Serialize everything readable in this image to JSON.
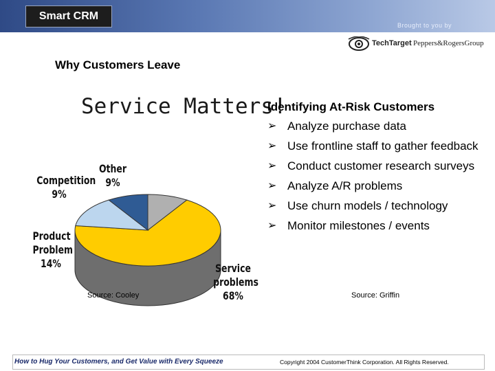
{
  "header": {
    "logo_text": "Smart CRM",
    "brought_by": "Brought to you by",
    "sponsor_1": "TechTarget",
    "sponsor_2": "Peppers&RogersGroup"
  },
  "slide": {
    "title": "Why Customers Leave",
    "heading": "Service Matters!",
    "right_title": "Identifying At-Risk Customers",
    "bullets": [
      "Analyze purchase data",
      "Use frontline staff to gather feedback",
      "Conduct customer research surveys",
      "Analyze A/R problems",
      "Use churn models / technology",
      "Monitor milestones / events"
    ],
    "source_left": "Source: Cooley",
    "source_right": "Source: Griffin"
  },
  "footer": {
    "title": "How to Hug Your Customers, and Get Value with Every Squeeze",
    "copyright": "Copyright 2004 CustomerThink Corporation. All Rights Reserved."
  },
  "chart_data": {
    "type": "pie",
    "title": "",
    "slices": [
      {
        "label_lines": [
          "Service",
          "problems"
        ],
        "value_label": "68%",
        "value": 68,
        "color": "#ffcc00"
      },
      {
        "label_lines": [
          "Product",
          "Problem"
        ],
        "value_label": "14%",
        "value": 14,
        "color": "#bcd6ee"
      },
      {
        "label_lines": [
          "Competition"
        ],
        "value_label": "9%",
        "value": 9,
        "color": "#2f5b94"
      },
      {
        "label_lines": [
          "Other"
        ],
        "value_label": "9%",
        "value": 9,
        "color": "#b0b0b0"
      }
    ]
  }
}
